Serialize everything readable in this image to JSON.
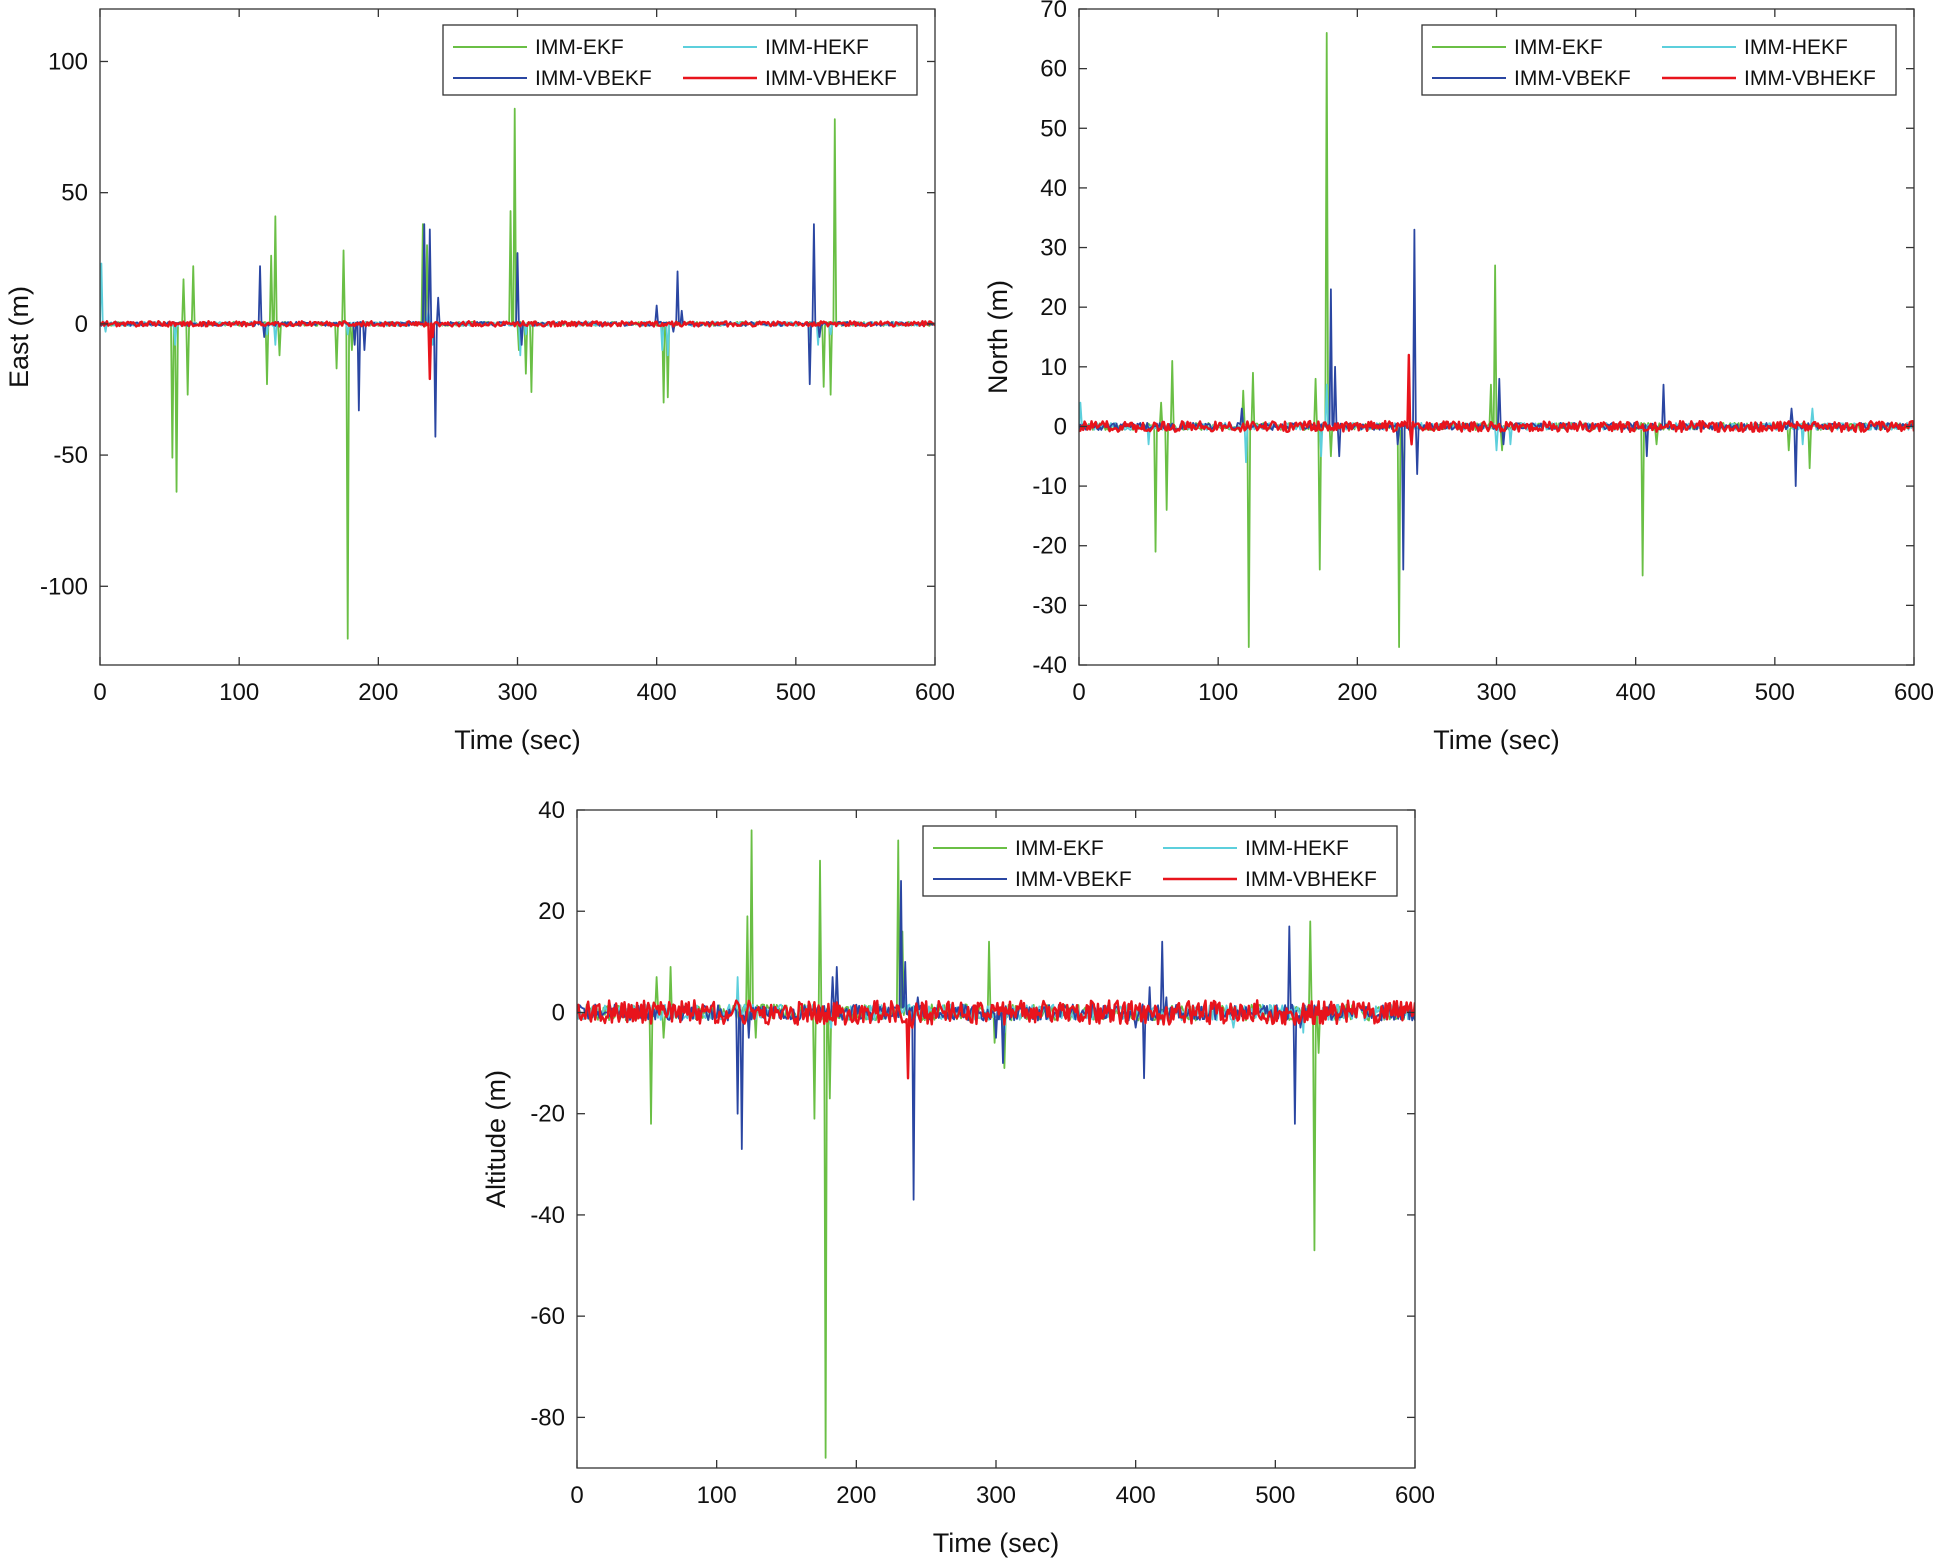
{
  "figure": {
    "description_free": true
  },
  "colors": {
    "IMM-EKF": "#6abf45",
    "IMM-HEKF": "#5ccfdc",
    "IMM-VBEKF": "#2a46a2",
    "IMM-VBHEKF": "#e8141c",
    "axis": "#333333",
    "legend_border": "#333333"
  },
  "chart_data": [
    {
      "type": "line",
      "xlabel": "Time (sec)",
      "ylabel": "East (m)",
      "xlim": [
        0,
        600
      ],
      "ylim": [
        -130,
        120
      ],
      "xticks": [
        0,
        100,
        200,
        300,
        400,
        500,
        600
      ],
      "yticks": [
        100,
        50,
        0,
        -50,
        -100
      ],
      "grid": false,
      "legend": {
        "placement": "top-right",
        "columns": 2,
        "entries": [
          "IMM-EKF",
          "IMM-HEKF",
          "IMM-VBEKF",
          "IMM-VBHEKF"
        ]
      },
      "noise": {
        "IMM-EKF": 0.8,
        "IMM-HEKF": 0.8,
        "IMM-VBEKF": 0.8,
        "IMM-VBHEKF": 1.0
      },
      "series": [
        {
          "name": "IMM-EKF",
          "events": [
            [
              52,
              -51
            ],
            [
              55,
              -64
            ],
            [
              60,
              17
            ],
            [
              63,
              -27
            ],
            [
              67,
              22
            ],
            [
              120,
              -23
            ],
            [
              123,
              26
            ],
            [
              126,
              41
            ],
            [
              129,
              -12
            ],
            [
              170,
              -17
            ],
            [
              175,
              28
            ],
            [
              178,
              -120
            ],
            [
              181,
              -10
            ],
            [
              232,
              38
            ],
            [
              235,
              30
            ],
            [
              295,
              43
            ],
            [
              298,
              82
            ],
            [
              301,
              -10
            ],
            [
              306,
              -19
            ],
            [
              310,
              -26
            ],
            [
              405,
              -30
            ],
            [
              408,
              -28
            ],
            [
              520,
              -24
            ],
            [
              525,
              -27
            ],
            [
              528,
              78
            ]
          ]
        },
        {
          "name": "IMM-HEKF",
          "events": [
            [
              1,
              23
            ],
            [
              4,
              -3
            ],
            [
              54,
              -8
            ],
            [
              120,
              -4
            ],
            [
              126,
              -8
            ],
            [
              178,
              -4
            ],
            [
              236,
              5
            ],
            [
              239,
              -8
            ],
            [
              302,
              -12
            ],
            [
              306,
              -4
            ],
            [
              404,
              -10
            ],
            [
              408,
              -12
            ],
            [
              510,
              -6
            ],
            [
              516,
              -8
            ],
            [
              525,
              -4
            ]
          ]
        },
        {
          "name": "IMM-VBEKF",
          "events": [
            [
              115,
              22
            ],
            [
              118,
              -5
            ],
            [
              183,
              -8
            ],
            [
              186,
              -33
            ],
            [
              190,
              -10
            ],
            [
              233,
              38
            ],
            [
              237,
              36
            ],
            [
              241,
              -43
            ],
            [
              243,
              10
            ],
            [
              300,
              27
            ],
            [
              303,
              -8
            ],
            [
              400,
              7
            ],
            [
              412,
              -3
            ],
            [
              415,
              20
            ],
            [
              418,
              5
            ],
            [
              510,
              -23
            ],
            [
              513,
              38
            ],
            [
              517,
              -5
            ]
          ]
        },
        {
          "name": "IMM-VBHEKF",
          "events": [
            [
              237,
              -21
            ],
            [
              239,
              -5
            ]
          ]
        }
      ]
    },
    {
      "type": "line",
      "xlabel": "Time (sec)",
      "ylabel": "North (m)",
      "xlim": [
        0,
        600
      ],
      "ylim": [
        -40,
        70
      ],
      "xticks": [
        0,
        100,
        200,
        300,
        400,
        500,
        600
      ],
      "yticks": [
        70,
        60,
        50,
        40,
        30,
        20,
        10,
        0,
        -10,
        -20,
        -30,
        -40
      ],
      "grid": false,
      "legend": {
        "placement": "top-right",
        "columns": 2,
        "entries": [
          "IMM-EKF",
          "IMM-HEKF",
          "IMM-VBEKF",
          "IMM-VBHEKF"
        ]
      },
      "noise": {
        "IMM-EKF": 0.6,
        "IMM-HEKF": 0.6,
        "IMM-VBEKF": 0.6,
        "IMM-VBHEKF": 0.9
      },
      "series": [
        {
          "name": "IMM-EKF",
          "events": [
            [
              55,
              -21
            ],
            [
              59,
              4
            ],
            [
              63,
              -14
            ],
            [
              67,
              11
            ],
            [
              118,
              6
            ],
            [
              122,
              -37
            ],
            [
              125,
              9
            ],
            [
              170,
              8
            ],
            [
              173,
              -24
            ],
            [
              178,
              66
            ],
            [
              181,
              -5
            ],
            [
              230,
              -37
            ],
            [
              233,
              -15
            ],
            [
              296,
              7
            ],
            [
              299,
              27
            ],
            [
              304,
              -4
            ],
            [
              405,
              -25
            ],
            [
              415,
              -3
            ],
            [
              510,
              -4
            ],
            [
              525,
              -7
            ]
          ]
        },
        {
          "name": "IMM-HEKF",
          "events": [
            [
              1,
              4
            ],
            [
              50,
              -3
            ],
            [
              120,
              -6
            ],
            [
              174,
              -5
            ],
            [
              178,
              7
            ],
            [
              300,
              -4
            ],
            [
              310,
              -3
            ],
            [
              520,
              -3
            ],
            [
              527,
              3
            ]
          ]
        },
        {
          "name": "IMM-VBEKF",
          "events": [
            [
              117,
              3
            ],
            [
              181,
              23
            ],
            [
              184,
              10
            ],
            [
              187,
              -5
            ],
            [
              229,
              -3
            ],
            [
              233,
              -24
            ],
            [
              241,
              33
            ],
            [
              243,
              -8
            ],
            [
              302,
              8
            ],
            [
              305,
              -3
            ],
            [
              408,
              -5
            ],
            [
              420,
              7
            ],
            [
              512,
              3
            ],
            [
              515,
              -10
            ]
          ]
        },
        {
          "name": "IMM-VBHEKF",
          "events": [
            [
              237,
              12
            ],
            [
              239,
              -3
            ]
          ]
        }
      ]
    },
    {
      "type": "line",
      "xlabel": "Time (sec)",
      "ylabel": "Altitude (m)",
      "xlim": [
        0,
        600
      ],
      "ylim": [
        -90,
        40
      ],
      "xticks": [
        0,
        100,
        200,
        300,
        400,
        500,
        600
      ],
      "yticks": [
        40,
        20,
        0,
        -20,
        -40,
        -60,
        -80
      ],
      "grid": false,
      "legend": {
        "placement": "top-right",
        "columns": 2,
        "entries": [
          "IMM-EKF",
          "IMM-HEKF",
          "IMM-VBEKF",
          "IMM-VBHEKF"
        ]
      },
      "noise": {
        "IMM-EKF": 1.6,
        "IMM-HEKF": 1.6,
        "IMM-VBEKF": 1.6,
        "IMM-VBHEKF": 2.4
      },
      "series": [
        {
          "name": "IMM-EKF",
          "events": [
            [
              53,
              -22
            ],
            [
              57,
              7
            ],
            [
              62,
              -5
            ],
            [
              67,
              9
            ],
            [
              122,
              19
            ],
            [
              125,
              36
            ],
            [
              128,
              -5
            ],
            [
              170,
              -21
            ],
            [
              174,
              30
            ],
            [
              178,
              -88
            ],
            [
              181,
              -17
            ],
            [
              230,
              34
            ],
            [
              233,
              16
            ],
            [
              295,
              14
            ],
            [
              299,
              -6
            ],
            [
              306,
              -11
            ],
            [
              525,
              18
            ],
            [
              528,
              -47
            ],
            [
              531,
              -8
            ]
          ]
        },
        {
          "name": "IMM-HEKF",
          "events": [
            [
              115,
              7
            ],
            [
              182,
              -3
            ],
            [
              235,
              3
            ],
            [
              306,
              -4
            ],
            [
              470,
              -3
            ],
            [
              520,
              -4
            ]
          ]
        },
        {
          "name": "IMM-VBEKF",
          "events": [
            [
              115,
              -20
            ],
            [
              118,
              -27
            ],
            [
              123,
              -5
            ],
            [
              183,
              7
            ],
            [
              186,
              9
            ],
            [
              232,
              26
            ],
            [
              235,
              10
            ],
            [
              241,
              -37
            ],
            [
              244,
              3
            ],
            [
              300,
              -5
            ],
            [
              305,
              -10
            ],
            [
              400,
              -3
            ],
            [
              406,
              -13
            ],
            [
              410,
              5
            ],
            [
              419,
              14
            ],
            [
              422,
              3
            ],
            [
              510,
              17
            ],
            [
              514,
              -22
            ],
            [
              518,
              -3
            ]
          ]
        },
        {
          "name": "IMM-VBHEKF",
          "events": [
            [
              237,
              -13
            ],
            [
              240,
              -3
            ]
          ]
        }
      ]
    }
  ]
}
